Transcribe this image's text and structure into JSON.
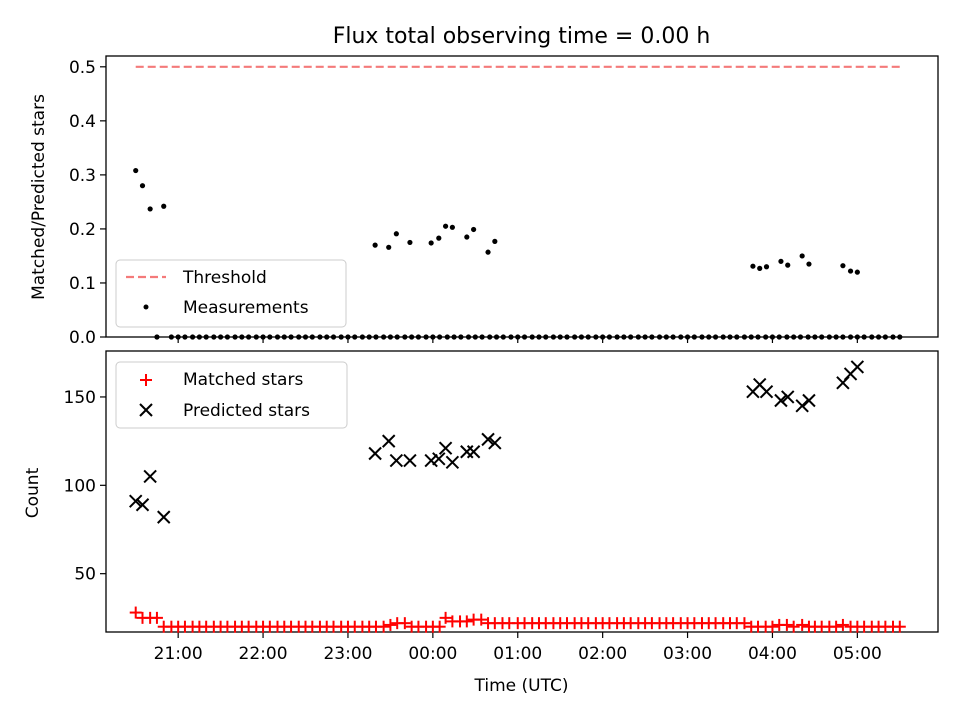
{
  "chart_data": [
    {
      "type": "scatter",
      "title": "Flux total observing time = 0.00 h",
      "xlabel": "",
      "ylabel": "Matched/Predicted stars",
      "xlim": [
        20.15,
        5.95
      ],
      "ylim": [
        0.0,
        0.52
      ],
      "yticks": [
        0.0,
        0.1,
        0.2,
        0.3,
        0.4,
        0.5
      ],
      "ytick_labels": [
        "0.0",
        "0.1",
        "0.2",
        "0.3",
        "0.4",
        "0.5"
      ],
      "legend_position": "lower-left",
      "threshold": {
        "name": "Threshold",
        "value": 0.5,
        "x_start": "20:30",
        "x_end": "05:30",
        "color": "#f47a7a"
      },
      "series": [
        {
          "name": "Measurements",
          "color": "#000000",
          "points": [
            [
              20.5,
              0.308
            ],
            [
              20.58,
              0.28
            ],
            [
              20.67,
              0.237
            ],
            [
              20.83,
              0.242
            ],
            [
              23.32,
              0.17
            ],
            [
              23.48,
              0.166
            ],
            [
              23.57,
              0.191
            ],
            [
              23.73,
              0.175
            ],
            [
              23.98,
              0.174
            ],
            [
              24.07,
              0.183
            ],
            [
              24.15,
              0.205
            ],
            [
              24.23,
              0.203
            ],
            [
              24.4,
              0.185
            ],
            [
              24.48,
              0.199
            ],
            [
              24.65,
              0.157
            ],
            [
              24.73,
              0.177
            ],
            [
              27.77,
              0.131
            ],
            [
              27.85,
              0.127
            ],
            [
              27.93,
              0.13
            ],
            [
              28.1,
              0.14
            ],
            [
              28.18,
              0.133
            ],
            [
              28.35,
              0.15
            ],
            [
              28.43,
              0.135
            ],
            [
              28.83,
              0.132
            ],
            [
              28.92,
              0.122
            ],
            [
              29.0,
              0.12
            ]
          ],
          "zero_points": [
            [
              20.75,
              0
            ],
            [
              20.92,
              0
            ],
            [
              21.0,
              0
            ],
            [
              21.08,
              0
            ],
            [
              21.17,
              0
            ],
            [
              21.25,
              0
            ],
            [
              21.33,
              0
            ],
            [
              21.42,
              0
            ],
            [
              21.5,
              0
            ],
            [
              21.58,
              0
            ],
            [
              21.67,
              0
            ],
            [
              21.75,
              0
            ],
            [
              21.83,
              0
            ],
            [
              21.92,
              0
            ],
            [
              22.0,
              0
            ],
            [
              22.08,
              0
            ],
            [
              22.17,
              0
            ],
            [
              22.25,
              0
            ],
            [
              22.33,
              0
            ],
            [
              22.42,
              0
            ],
            [
              22.5,
              0
            ],
            [
              22.58,
              0
            ],
            [
              22.67,
              0
            ],
            [
              22.75,
              0
            ],
            [
              22.83,
              0
            ],
            [
              22.92,
              0
            ],
            [
              23.0,
              0
            ],
            [
              23.08,
              0
            ],
            [
              23.17,
              0
            ],
            [
              23.25,
              0
            ],
            [
              23.33,
              0
            ],
            [
              23.42,
              0
            ],
            [
              23.5,
              0
            ],
            [
              23.58,
              0
            ],
            [
              23.67,
              0
            ],
            [
              23.75,
              0
            ],
            [
              23.83,
              0
            ],
            [
              23.92,
              0
            ],
            [
              24.0,
              0
            ],
            [
              24.08,
              0
            ],
            [
              24.17,
              0
            ],
            [
              24.25,
              0
            ],
            [
              24.33,
              0
            ],
            [
              24.42,
              0
            ],
            [
              24.5,
              0
            ],
            [
              24.58,
              0
            ],
            [
              24.67,
              0
            ],
            [
              24.75,
              0
            ],
            [
              24.83,
              0
            ],
            [
              24.92,
              0
            ],
            [
              25.0,
              0
            ],
            [
              25.08,
              0
            ],
            [
              25.17,
              0
            ],
            [
              25.25,
              0
            ],
            [
              25.33,
              0
            ],
            [
              25.42,
              0
            ],
            [
              25.5,
              0
            ],
            [
              25.58,
              0
            ],
            [
              25.67,
              0
            ],
            [
              25.75,
              0
            ],
            [
              25.83,
              0
            ],
            [
              25.92,
              0
            ],
            [
              26.0,
              0
            ],
            [
              26.08,
              0
            ],
            [
              26.17,
              0
            ],
            [
              26.25,
              0
            ],
            [
              26.33,
              0
            ],
            [
              26.42,
              0
            ],
            [
              26.5,
              0
            ],
            [
              26.58,
              0
            ],
            [
              26.67,
              0
            ],
            [
              26.75,
              0
            ],
            [
              26.83,
              0
            ],
            [
              26.92,
              0
            ],
            [
              27.0,
              0
            ],
            [
              27.08,
              0
            ],
            [
              27.17,
              0
            ],
            [
              27.25,
              0
            ],
            [
              27.33,
              0
            ],
            [
              27.42,
              0
            ],
            [
              27.5,
              0
            ],
            [
              27.58,
              0
            ],
            [
              27.67,
              0
            ],
            [
              27.75,
              0
            ],
            [
              27.83,
              0
            ],
            [
              27.92,
              0
            ],
            [
              28.0,
              0
            ],
            [
              28.08,
              0
            ],
            [
              28.17,
              0
            ],
            [
              28.25,
              0
            ],
            [
              28.33,
              0
            ],
            [
              28.42,
              0
            ],
            [
              28.5,
              0
            ],
            [
              28.58,
              0
            ],
            [
              28.67,
              0
            ],
            [
              28.75,
              0
            ],
            [
              28.83,
              0
            ],
            [
              28.92,
              0
            ],
            [
              29.0,
              0
            ],
            [
              29.08,
              0
            ],
            [
              29.17,
              0
            ],
            [
              29.25,
              0
            ],
            [
              29.33,
              0
            ],
            [
              29.42,
              0
            ],
            [
              29.5,
              0
            ]
          ]
        }
      ]
    },
    {
      "type": "scatter",
      "title": "",
      "xlabel": "Time (UTC)",
      "ylabel": "Count",
      "xlim": [
        20.15,
        5.95
      ],
      "ylim": [
        17,
        176
      ],
      "yticks": [
        50,
        100,
        150
      ],
      "ytick_labels": [
        "50",
        "100",
        "150"
      ],
      "xticks": [
        21,
        22,
        23,
        24,
        25,
        26,
        27,
        28,
        29
      ],
      "xtick_labels": [
        "21:00",
        "22:00",
        "23:00",
        "00:00",
        "01:00",
        "02:00",
        "03:00",
        "04:00",
        "05:00"
      ],
      "legend_position": "upper-left",
      "series": [
        {
          "name": "Matched stars",
          "color": "#ff0000",
          "marker": "+",
          "points": [
            [
              20.5,
              28
            ],
            [
              20.58,
              25
            ],
            [
              20.67,
              25
            ],
            [
              20.75,
              25
            ],
            [
              20.83,
              20
            ],
            [
              20.92,
              20
            ],
            [
              21.0,
              20
            ],
            [
              21.08,
              20
            ],
            [
              21.17,
              20
            ],
            [
              21.25,
              20
            ],
            [
              21.33,
              20
            ],
            [
              21.42,
              20
            ],
            [
              21.5,
              20
            ],
            [
              21.58,
              20
            ],
            [
              21.67,
              20
            ],
            [
              21.75,
              20
            ],
            [
              21.83,
              20
            ],
            [
              21.92,
              20
            ],
            [
              22.0,
              20
            ],
            [
              22.08,
              20
            ],
            [
              22.17,
              20
            ],
            [
              22.25,
              20
            ],
            [
              22.33,
              20
            ],
            [
              22.42,
              20
            ],
            [
              22.5,
              20
            ],
            [
              22.58,
              20
            ],
            [
              22.67,
              20
            ],
            [
              22.75,
              20
            ],
            [
              22.83,
              20
            ],
            [
              22.92,
              20
            ],
            [
              23.0,
              20
            ],
            [
              23.08,
              20
            ],
            [
              23.17,
              20
            ],
            [
              23.25,
              20
            ],
            [
              23.33,
              20
            ],
            [
              23.42,
              20
            ],
            [
              23.5,
              21
            ],
            [
              23.58,
              22
            ],
            [
              23.67,
              22
            ],
            [
              23.75,
              20
            ],
            [
              23.83,
              20
            ],
            [
              23.92,
              20
            ],
            [
              24.0,
              20
            ],
            [
              24.08,
              20
            ],
            [
              24.15,
              25
            ],
            [
              24.23,
              23
            ],
            [
              24.32,
              23
            ],
            [
              24.4,
              23
            ],
            [
              24.48,
              24
            ],
            [
              24.57,
              24
            ],
            [
              24.65,
              22
            ],
            [
              24.73,
              22
            ],
            [
              24.82,
              22
            ],
            [
              24.9,
              22
            ],
            [
              25.0,
              22
            ],
            [
              25.08,
              22
            ],
            [
              25.17,
              22
            ],
            [
              25.25,
              22
            ],
            [
              25.33,
              22
            ],
            [
              25.42,
              22
            ],
            [
              25.5,
              22
            ],
            [
              25.58,
              22
            ],
            [
              25.67,
              22
            ],
            [
              25.75,
              22
            ],
            [
              25.83,
              22
            ],
            [
              25.92,
              22
            ],
            [
              26.0,
              22
            ],
            [
              26.08,
              22
            ],
            [
              26.17,
              22
            ],
            [
              26.25,
              22
            ],
            [
              26.33,
              22
            ],
            [
              26.42,
              22
            ],
            [
              26.5,
              22
            ],
            [
              26.58,
              22
            ],
            [
              26.67,
              22
            ],
            [
              26.75,
              22
            ],
            [
              26.83,
              22
            ],
            [
              26.92,
              22
            ],
            [
              27.0,
              22
            ],
            [
              27.08,
              22
            ],
            [
              27.17,
              22
            ],
            [
              27.25,
              22
            ],
            [
              27.33,
              22
            ],
            [
              27.42,
              22
            ],
            [
              27.5,
              22
            ],
            [
              27.58,
              22
            ],
            [
              27.67,
              22
            ],
            [
              27.75,
              20
            ],
            [
              27.83,
              20
            ],
            [
              27.92,
              20
            ],
            [
              28.0,
              20
            ],
            [
              28.08,
              21
            ],
            [
              28.17,
              21
            ],
            [
              28.25,
              20
            ],
            [
              28.35,
              21
            ],
            [
              28.43,
              20
            ],
            [
              28.5,
              20
            ],
            [
              28.58,
              20
            ],
            [
              28.67,
              20
            ],
            [
              28.75,
              20
            ],
            [
              28.83,
              21
            ],
            [
              28.92,
              20
            ],
            [
              29.0,
              20
            ],
            [
              29.08,
              20
            ],
            [
              29.17,
              20
            ],
            [
              29.25,
              20
            ],
            [
              29.33,
              20
            ],
            [
              29.42,
              20
            ],
            [
              29.5,
              20
            ]
          ]
        },
        {
          "name": "Predicted stars",
          "color": "#000000",
          "marker": "x",
          "points": [
            [
              20.5,
              91
            ],
            [
              20.58,
              89
            ],
            [
              20.67,
              105
            ],
            [
              20.83,
              82
            ],
            [
              23.32,
              118
            ],
            [
              23.48,
              125
            ],
            [
              23.57,
              114
            ],
            [
              23.73,
              114
            ],
            [
              23.98,
              114
            ],
            [
              24.07,
              115
            ],
            [
              24.15,
              121
            ],
            [
              24.23,
              113
            ],
            [
              24.4,
              119
            ],
            [
              24.48,
              119
            ],
            [
              24.65,
              126
            ],
            [
              24.73,
              124
            ],
            [
              27.77,
              153
            ],
            [
              27.85,
              157
            ],
            [
              27.93,
              153
            ],
            [
              28.1,
              148
            ],
            [
              28.18,
              150
            ],
            [
              28.35,
              145
            ],
            [
              28.43,
              148
            ],
            [
              28.83,
              158
            ],
            [
              28.92,
              163
            ],
            [
              29.0,
              167
            ]
          ]
        }
      ]
    }
  ],
  "colors": {
    "threshold": "#f47a7a",
    "measurements": "#000000",
    "matched": "#ff0000",
    "predicted": "#000000",
    "axes": "#000000"
  }
}
